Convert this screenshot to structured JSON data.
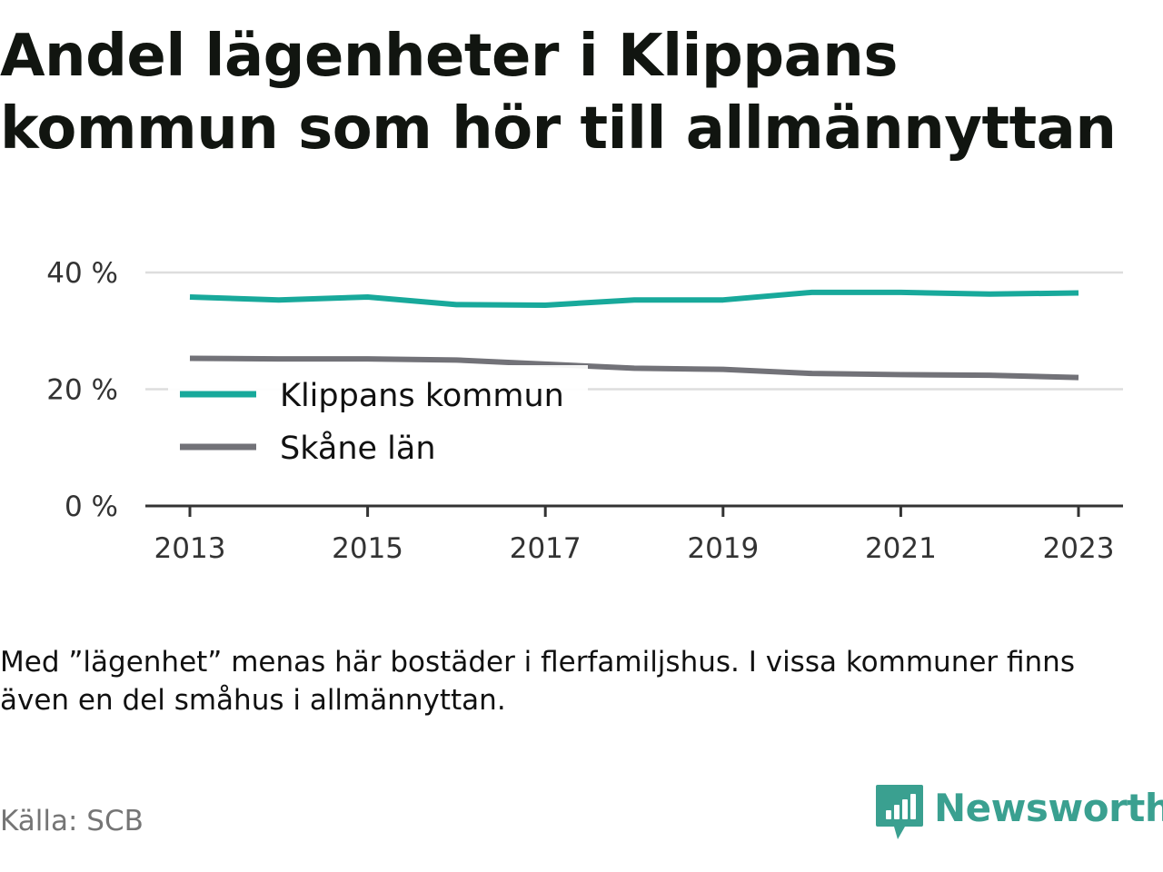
{
  "title": "Andel lägenheter i Klippans kommun som hör till allmännyttan",
  "note": "Med ”lägenhet” menas här bostäder i flerfamiljshus. I vissa kommuner finns även en del småhus i allmännyttan.",
  "source": "Källa: SCB",
  "brand": {
    "name": "Newsworthy",
    "color": "#3aa090"
  },
  "chart_data": {
    "type": "line",
    "x": [
      2013,
      2014,
      2015,
      2016,
      2017,
      2018,
      2019,
      2020,
      2021,
      2022,
      2023
    ],
    "x_ticks": [
      "2013",
      "2015",
      "2017",
      "2019",
      "2021",
      "2023"
    ],
    "y_ticks": [
      "0 %",
      "20 %",
      "40 %"
    ],
    "y_tick_values": [
      0,
      20,
      40
    ],
    "ylim": [
      0,
      40
    ],
    "grid": true,
    "legend_position": "center-left",
    "series": [
      {
        "name": "Klippans kommun",
        "color": "#18a99b",
        "values": [
          35.8,
          35.3,
          35.8,
          34.5,
          34.4,
          35.3,
          35.3,
          36.6,
          36.6,
          36.3,
          36.5
        ]
      },
      {
        "name": "Skåne län",
        "color": "#727278",
        "values": [
          25.3,
          25.2,
          25.2,
          25.0,
          24.3,
          23.6,
          23.4,
          22.7,
          22.5,
          22.4,
          22.0
        ]
      }
    ]
  }
}
